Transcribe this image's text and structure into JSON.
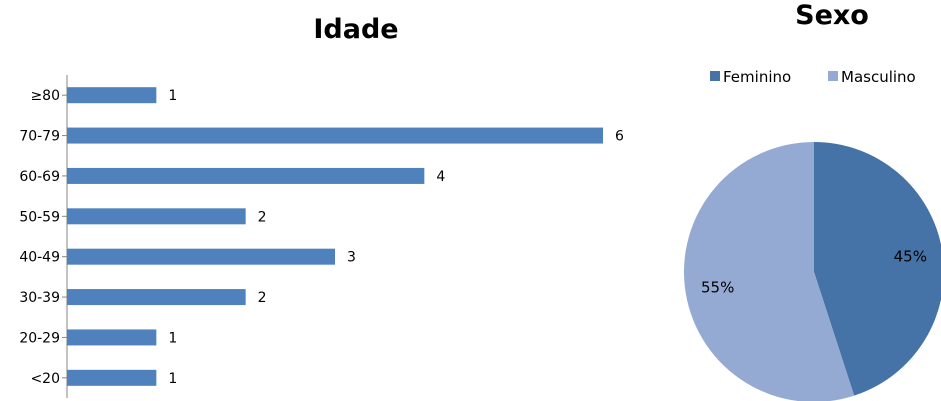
{
  "chart_data": [
    {
      "type": "bar",
      "orientation": "horizontal",
      "title": "Idade",
      "categories": [
        "<20",
        "20-29",
        "30-39",
        "40-49",
        "50-59",
        "60-69",
        "70-79",
        "≥80"
      ],
      "values": [
        1,
        1,
        2,
        3,
        2,
        4,
        6,
        1
      ],
      "xlim": [
        0,
        6
      ],
      "grid": false,
      "data_labels": true,
      "colors": {
        "bar": "#4F81BD",
        "axis": "#868686"
      }
    },
    {
      "type": "pie",
      "title": "Sexo",
      "legend_position": "top",
      "slices": [
        {
          "label": "Feminino",
          "value": 45,
          "display": "45%",
          "color": "#4572A7"
        },
        {
          "label": "Masculino",
          "value": 55,
          "display": "55%",
          "color": "#95AAD2"
        }
      ]
    }
  ]
}
